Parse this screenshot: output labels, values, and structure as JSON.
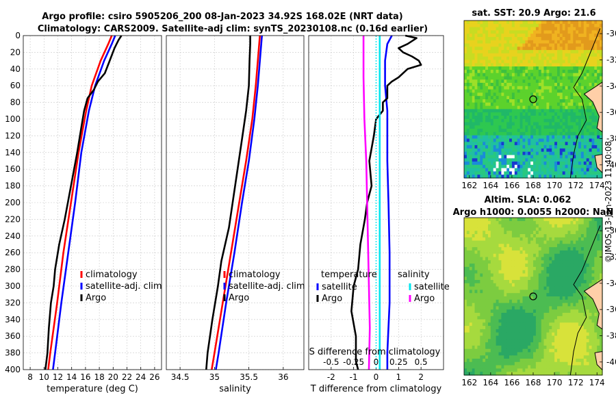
{
  "figure": {
    "title_line1": "Argo profile: csiro 5905206_200 08-Jan-2023 34.92S 168.02E (NRT data)",
    "title_line2": "Climatology: CARS2009. Satellite-adj clim: synTS_20230108.nc (0.16d earlier)",
    "copyright": "©IMOS 13-Jan-2023 11:40:08"
  },
  "colors": {
    "climatology": "#ff0000",
    "satellite": "#0000ff",
    "argo": "#000000",
    "sal_satellite": "#00e5ee",
    "sal_argo": "#ff00ff",
    "zero_line": "#00e5ee"
  },
  "chart_data": [
    {
      "id": "temperature",
      "type": "line",
      "xlabel": "temperature (deg C)",
      "xlim": [
        7,
        27
      ],
      "xticks": [
        8,
        10,
        12,
        14,
        16,
        18,
        20,
        22,
        24,
        26
      ],
      "ylim": [
        400,
        0
      ],
      "yticks": [
        0,
        20,
        40,
        60,
        80,
        100,
        120,
        140,
        160,
        180,
        200,
        220,
        240,
        260,
        280,
        300,
        320,
        340,
        360,
        380,
        400
      ],
      "legend": [
        "climatology",
        "satellite-adj. clim",
        "Argo"
      ],
      "series": [
        {
          "name": "climatology",
          "color": "#ff0000",
          "depth": [
            0,
            10,
            30,
            60,
            90,
            140,
            200,
            260,
            320,
            380,
            400
          ],
          "values": [
            19.8,
            19.3,
            18.2,
            16.9,
            16.1,
            15.0,
            13.9,
            12.8,
            11.9,
            10.9,
            10.6
          ]
        },
        {
          "name": "satellite-adj. clim",
          "color": "#0000ff",
          "depth": [
            0,
            10,
            30,
            60,
            90,
            140,
            200,
            260,
            320,
            380,
            400
          ],
          "values": [
            20.3,
            19.8,
            18.7,
            17.4,
            16.5,
            15.4,
            14.5,
            13.5,
            12.5,
            11.6,
            11.3
          ]
        },
        {
          "name": "Argo",
          "color": "#000000",
          "depth": [
            0,
            5,
            15,
            30,
            45,
            55,
            65,
            75,
            90,
            110,
            140,
            180,
            220,
            250,
            280,
            300,
            320,
            350,
            380,
            400
          ],
          "values": [
            21.2,
            20.8,
            20.2,
            19.5,
            18.8,
            17.8,
            17.2,
            16.3,
            15.8,
            15.4,
            14.8,
            13.9,
            13.0,
            12.2,
            11.6,
            11.4,
            11.0,
            10.7,
            10.5,
            10.2
          ]
        }
      ]
    },
    {
      "id": "salinity",
      "type": "line",
      "xlabel": "salinity",
      "xlim": [
        34.3,
        36.3
      ],
      "xticks": [
        34.5,
        35,
        35.5,
        36
      ],
      "xtick_labels": [
        "34.5",
        "35",
        "35.5",
        "36"
      ],
      "ylim": [
        400,
        0
      ],
      "legend": [
        "climatology",
        "satellite-adj. clim",
        "Argo"
      ],
      "series": [
        {
          "name": "climatology",
          "color": "#ff0000",
          "depth": [
            0,
            20,
            60,
            100,
            150,
            200,
            260,
            320,
            380,
            400
          ],
          "values": [
            35.66,
            35.64,
            35.6,
            35.55,
            35.46,
            35.36,
            35.24,
            35.12,
            35.0,
            34.96
          ]
        },
        {
          "name": "satellite-adj. clim",
          "color": "#0000ff",
          "depth": [
            0,
            20,
            60,
            100,
            150,
            200,
            260,
            320,
            380,
            400
          ],
          "values": [
            35.69,
            35.67,
            35.63,
            35.58,
            35.5,
            35.4,
            35.29,
            35.17,
            35.06,
            35.02
          ]
        },
        {
          "name": "Argo",
          "color": "#000000",
          "depth": [
            0,
            10,
            30,
            60,
            90,
            130,
            180,
            230,
            270,
            300,
            340,
            380,
            400
          ],
          "values": [
            35.52,
            35.52,
            35.51,
            35.5,
            35.46,
            35.39,
            35.3,
            35.21,
            35.1,
            35.05,
            34.97,
            34.9,
            34.88
          ]
        }
      ]
    },
    {
      "id": "difference",
      "type": "line",
      "xlabel": "T difference from climatology",
      "xlim": [
        -3,
        3
      ],
      "xticks": [
        -2,
        -1,
        0,
        1,
        2
      ],
      "xtick_labels": [
        "-2",
        "-1",
        "0",
        "1",
        "2"
      ],
      "top_axis_label": "S difference from climatology",
      "top_ticks": [
        -0.5,
        -0.25,
        0,
        0.25,
        0.5
      ],
      "top_tick_labels": [
        "-0.5",
        "-0.25",
        "0",
        "0.25",
        "0.5"
      ],
      "ylim": [
        400,
        0
      ],
      "legend_temperature_title": "temperature",
      "legend_temperature": [
        "satellite",
        "Argo"
      ],
      "legend_salinity_title": "salinity",
      "legend_salinity": [
        "satellite",
        "Argo"
      ],
      "series": [
        {
          "name": "T satellite",
          "color": "#0000ff",
          "depth": [
            0,
            10,
            30,
            60,
            90,
            100,
            150,
            200,
            260,
            320,
            380,
            400
          ],
          "values": [
            0.7,
            0.5,
            0.4,
            0.4,
            0.5,
            0.5,
            0.5,
            0.55,
            0.6,
            0.6,
            0.5,
            0.5
          ]
        },
        {
          "name": "T Argo",
          "color": "#000000",
          "depth": [
            0,
            3,
            10,
            15,
            20,
            25,
            30,
            35,
            40,
            50,
            55,
            60,
            65,
            75,
            80,
            90,
            100,
            120,
            150,
            180,
            200,
            220,
            250,
            280,
            300,
            330,
            360,
            390,
            400
          ],
          "values": [
            1.3,
            1.8,
            1.4,
            1.0,
            1.2,
            1.6,
            1.9,
            2.0,
            1.4,
            1.0,
            0.7,
            0.5,
            0.5,
            0.5,
            0.3,
            0.3,
            0.0,
            -0.1,
            -0.3,
            -0.2,
            -0.4,
            -0.5,
            -0.7,
            -0.8,
            -1.0,
            -1.1,
            -0.9,
            -0.9,
            -0.8
          ]
        },
        {
          "name": "S satellite",
          "color": "#00e5ee",
          "depth": [
            0,
            100,
            200,
            300,
            400
          ],
          "values": [
            0.04,
            0.04,
            0.04,
            0.04,
            0.04
          ]
        },
        {
          "name": "S Argo",
          "color": "#ff00ff",
          "depth": [
            0,
            50,
            100,
            150,
            200,
            250,
            300,
            350,
            400
          ],
          "values": [
            -0.14,
            -0.14,
            -0.13,
            -0.11,
            -0.1,
            -0.09,
            -0.08,
            -0.07,
            -0.08
          ]
        }
      ]
    },
    {
      "id": "sst_map",
      "type": "heatmap",
      "title": "sat. SST: 20.9 Argo: 21.6",
      "xlim": [
        161.5,
        174.5
      ],
      "ylim": [
        -41,
        -29
      ],
      "xticks": [
        162,
        164,
        166,
        168,
        170,
        172,
        174
      ],
      "yticks": [
        -30,
        -32,
        -34,
        -36,
        -38,
        -40
      ],
      "marker": [
        168.0,
        -35.0
      ]
    },
    {
      "id": "sla_map",
      "type": "heatmap",
      "title": "Altim. SLA: 0.062",
      "subtitle": "Argo h1000: 0.0055 h2000: NaN",
      "xlim": [
        161.5,
        174.5
      ],
      "ylim": [
        -41,
        -29
      ],
      "xticks": [
        162,
        164,
        166,
        168,
        170,
        172,
        174
      ],
      "yticks": [
        -30,
        -32,
        -34,
        -36,
        -38,
        -40
      ],
      "marker": [
        168.0,
        -35.0
      ]
    }
  ]
}
